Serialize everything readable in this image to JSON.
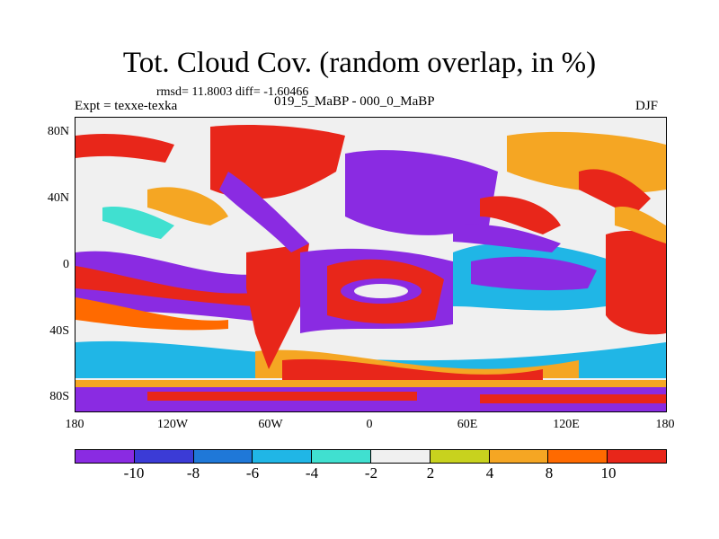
{
  "title": "Tot. Cloud Cov. (random overlap, in %)",
  "stats": "rmsd= 11.8003 diff= -1.60466",
  "experiment": "Expt = texxe-texka",
  "comparison": "019_5_MaBP - 000_0_MaBP",
  "season": "DJF",
  "lat_ticks": [
    "80N",
    "40N",
    "0",
    "40S",
    "80S"
  ],
  "lon_ticks": [
    "180",
    "120W",
    "60W",
    "0",
    "60E",
    "120E",
    "180"
  ],
  "colorbar_labels": [
    "-10",
    "-8",
    "-6",
    "-4",
    "-2",
    "2",
    "4",
    "8",
    "10"
  ],
  "colorbar_colors": [
    "#8a2be2",
    "#3b3bd6",
    "#1f78d8",
    "#20b6e6",
    "#40e0d0",
    "#f0f0f0",
    "#c8d21e",
    "#f5a623",
    "#ff6a00",
    "#e8261a"
  ]
}
